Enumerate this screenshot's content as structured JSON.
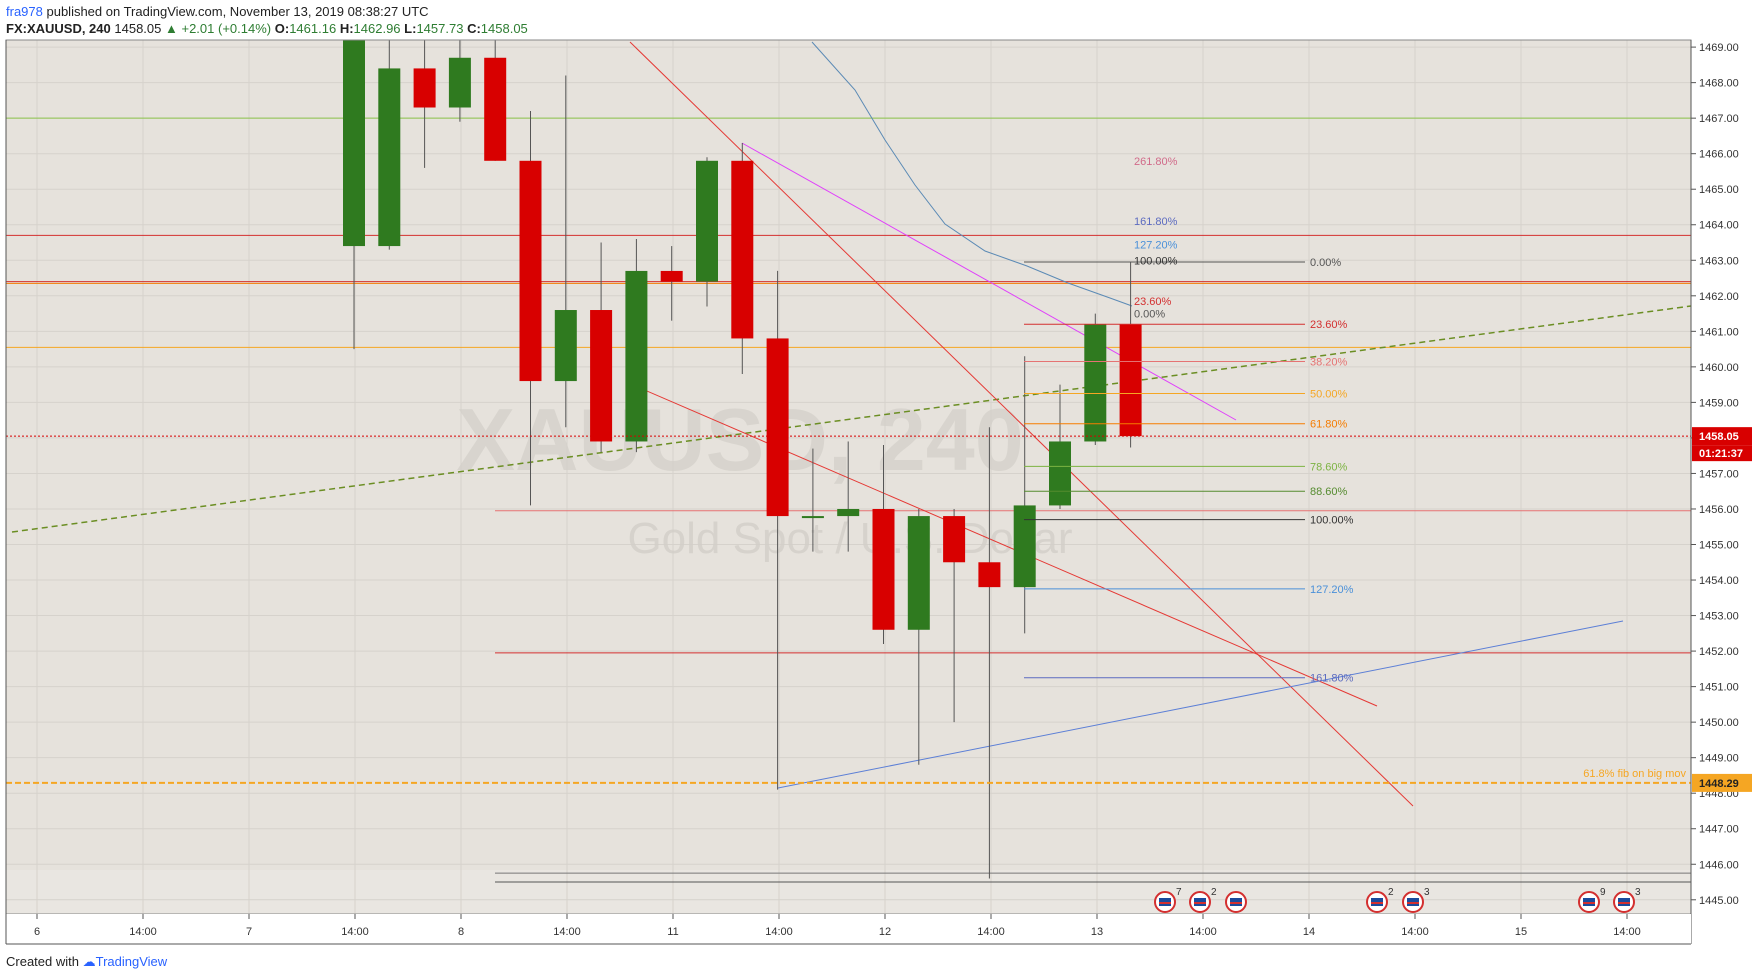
{
  "header": {
    "user": "fra978",
    "published_text": " published on TradingView.com, November 13, 2019 08:38:27 UTC",
    "symbol": "FX:XAUUSD, 240",
    "last": "1458.05",
    "change": "▲ +2.01 (+0.14%)",
    "open_label": "O:",
    "open": "1461.16",
    "high_label": "H:",
    "high": "1462.96",
    "low_label": "L:",
    "low": "1457.73",
    "close_label": "C:",
    "close": "1458.05"
  },
  "footer": {
    "created_with": "Created with",
    "brand": "TradingView"
  },
  "colors": {
    "background": "#e6e2dc",
    "bull": "#2f7a1f",
    "bear": "#d80000",
    "grid": "#d6d2cc"
  },
  "chart_data": {
    "type": "candlestick",
    "watermark_symbol": "XAUUSD, 240",
    "watermark_desc": "Gold Spot / U.S. Dollar",
    "ylim": [
      1444.6,
      1469.2
    ],
    "y_ticks": [
      "1445.00",
      "1446.00",
      "1447.00",
      "1448.00",
      "1449.00",
      "1450.00",
      "1451.00",
      "1452.00",
      "1453.00",
      "1454.00",
      "1455.00",
      "1456.00",
      "1457.00",
      "1458.00",
      "1459.00",
      "1460.00",
      "1461.00",
      "1462.00",
      "1463.00",
      "1464.00",
      "1465.00",
      "1466.00",
      "1467.00",
      "1468.00",
      "1469.00"
    ],
    "x_ticks": [
      "6",
      "14:00",
      "7",
      "14:00",
      "8",
      "14:00",
      "11",
      "14:00",
      "12",
      "14:00",
      "13",
      "14:00",
      "14",
      "14:00",
      "15",
      "14:00"
    ],
    "candles": [
      {
        "o": 1463.4,
        "h": 1469.2,
        "l": 1460.5,
        "c": 1469.2
      },
      {
        "o": 1463.4,
        "h": 1469.2,
        "l": 1463.3,
        "c": 1468.4
      },
      {
        "o": 1468.4,
        "h": 1469.2,
        "l": 1465.6,
        "c": 1467.3
      },
      {
        "o": 1467.3,
        "h": 1469.2,
        "l": 1466.9,
        "c": 1468.7
      },
      {
        "o": 1468.7,
        "h": 1469.2,
        "l": 1465.8,
        "c": 1465.8
      },
      {
        "o": 1465.8,
        "h": 1467.2,
        "l": 1456.1,
        "c": 1459.6
      },
      {
        "o": 1459.6,
        "h": 1468.2,
        "l": 1458.3,
        "c": 1461.6
      },
      {
        "o": 1461.6,
        "h": 1463.5,
        "l": 1457.6,
        "c": 1457.9
      },
      {
        "o": 1457.9,
        "h": 1463.6,
        "l": 1457.6,
        "c": 1462.7
      },
      {
        "o": 1462.7,
        "h": 1463.4,
        "l": 1461.3,
        "c": 1462.4
      },
      {
        "o": 1462.4,
        "h": 1465.9,
        "l": 1461.7,
        "c": 1465.8
      },
      {
        "o": 1465.8,
        "h": 1466.3,
        "l": 1459.8,
        "c": 1460.8
      },
      {
        "o": 1460.8,
        "h": 1462.7,
        "l": 1448.1,
        "c": 1455.8
      },
      {
        "o": 1455.8,
        "h": 1457.7,
        "l": 1454.8,
        "c": 1455.8
      },
      {
        "o": 1455.8,
        "h": 1457.9,
        "l": 1454.8,
        "c": 1456.0
      },
      {
        "o": 1456.0,
        "h": 1457.8,
        "l": 1452.2,
        "c": 1452.6
      },
      {
        "o": 1452.6,
        "h": 1456.0,
        "l": 1448.8,
        "c": 1455.8
      },
      {
        "o": 1455.8,
        "h": 1456.0,
        "l": 1450.0,
        "c": 1454.5
      },
      {
        "o": 1454.5,
        "h": 1458.3,
        "l": 1445.6,
        "c": 1453.8
      },
      {
        "o": 1453.8,
        "h": 1460.3,
        "l": 1452.5,
        "c": 1456.1
      },
      {
        "o": 1456.1,
        "h": 1459.5,
        "l": 1456.0,
        "c": 1457.9
      },
      {
        "o": 1457.9,
        "h": 1461.5,
        "l": 1457.8,
        "c": 1461.2
      },
      {
        "o": 1461.2,
        "h": 1462.96,
        "l": 1457.73,
        "c": 1458.05
      }
    ],
    "horizontal_levels": [
      {
        "y": 1463.7,
        "color": "#d32f2f"
      },
      {
        "y": 1462.4,
        "color": "#d32f2f"
      },
      {
        "y": 1462.35,
        "color": "#f57c00"
      },
      {
        "y": 1460.55,
        "color": "#f5a623"
      },
      {
        "y": 1467.0,
        "color": "#8bc34a"
      },
      {
        "y": 1455.95,
        "color": "#e57373"
      },
      {
        "y": 1451.95,
        "color": "#d32f2f"
      },
      {
        "y": 1445.5,
        "color": "#555555"
      },
      {
        "y": 1445.75,
        "color": "#777777"
      }
    ],
    "price_label": {
      "value": "1458.05",
      "countdown": "01:21:37"
    },
    "orange_level": {
      "value": "1448.29",
      "note": "61.8% fib on big mov"
    },
    "fib_levels": [
      {
        "label": "0.00%",
        "y": 1462.95,
        "color": "#555555"
      },
      {
        "label": "23.60%",
        "y": 1461.2,
        "color": "#d32f2f"
      },
      {
        "label": "38.20%",
        "y": 1460.15,
        "color": "#e57373"
      },
      {
        "label": "50.00%",
        "y": 1459.25,
        "color": "#f5a623"
      },
      {
        "label": "61.80%",
        "y": 1458.4,
        "color": "#f57c00"
      },
      {
        "label": "78.60%",
        "y": 1457.2,
        "color": "#7cb342"
      },
      {
        "label": "88.60%",
        "y": 1456.5,
        "color": "#558b2f"
      },
      {
        "label": "100.00%",
        "y": 1455.7,
        "color": "#333333"
      },
      {
        "label": "127.20%",
        "y": 1453.75,
        "color": "#4a90d9"
      },
      {
        "label": "161.80%",
        "y": 1451.25,
        "color": "#5c6bc0"
      }
    ],
    "upper_fib_labels": [
      {
        "label": "261.80%",
        "y": 1465.8,
        "color": "#d16b8a"
      },
      {
        "label": "161.80%",
        "y": 1464.1,
        "color": "#5c6bc0"
      },
      {
        "label": "127.20%",
        "y": 1463.45,
        "color": "#4a90d9"
      },
      {
        "label": "100.00%",
        "y": 1463.0,
        "color": "#333333"
      },
      {
        "label": "23.60%",
        "y": 1461.85,
        "color": "#d32f2f"
      },
      {
        "label": "0.00%",
        "y": 1461.5,
        "color": "#555555"
      }
    ],
    "event_icons": [
      {
        "count": "7"
      },
      {
        "count": "2"
      },
      {
        "count": ""
      },
      {
        "count": "2"
      },
      {
        "count": "3"
      },
      {
        "count": "9"
      },
      {
        "count": "3"
      }
    ]
  }
}
